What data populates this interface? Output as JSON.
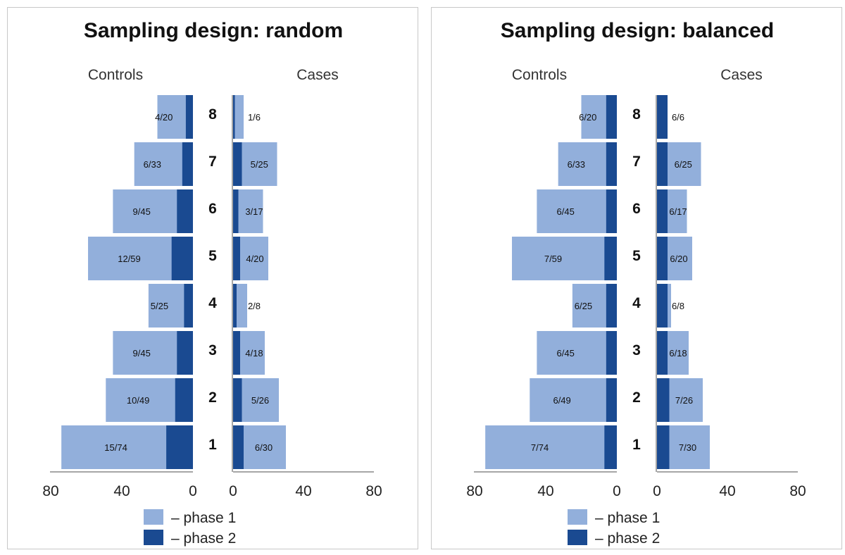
{
  "chart_data": [
    {
      "type": "bar",
      "title": "Sampling design: random",
      "left_label": "Controls",
      "right_label": "Cases",
      "strata": [
        "8",
        "7",
        "6",
        "5",
        "4",
        "3",
        "2",
        "1"
      ],
      "controls": {
        "phase1_totals": [
          20,
          33,
          45,
          59,
          25,
          45,
          49,
          74
        ],
        "phase2_values": [
          4,
          6,
          9,
          12,
          5,
          9,
          10,
          15
        ],
        "labels": [
          "4/20",
          "6/33",
          "9/45",
          "12/59",
          "5/25",
          "9/45",
          "10/49",
          "15/74"
        ]
      },
      "cases": {
        "phase1_totals": [
          6,
          25,
          17,
          20,
          8,
          18,
          26,
          30
        ],
        "phase2_values": [
          1,
          5,
          3,
          4,
          2,
          4,
          5,
          6
        ],
        "labels": [
          "1/6",
          "5/25",
          "3/17",
          "4/20",
          "2/8",
          "4/18",
          "5/26",
          "6/30"
        ]
      },
      "left_ticks": [
        "80",
        "40",
        "0"
      ],
      "right_ticks": [
        "0",
        "40",
        "80"
      ],
      "xlim": [
        0,
        80
      ]
    },
    {
      "type": "bar",
      "title": "Sampling design: balanced",
      "left_label": "Controls",
      "right_label": "Cases",
      "strata": [
        "8",
        "7",
        "6",
        "5",
        "4",
        "3",
        "2",
        "1"
      ],
      "controls": {
        "phase1_totals": [
          20,
          33,
          45,
          59,
          25,
          45,
          49,
          74
        ],
        "phase2_values": [
          6,
          6,
          6,
          7,
          6,
          6,
          6,
          7
        ],
        "labels": [
          "6/20",
          "6/33",
          "6/45",
          "7/59",
          "6/25",
          "6/45",
          "6/49",
          "7/74"
        ]
      },
      "cases": {
        "phase1_totals": [
          6,
          25,
          17,
          20,
          8,
          18,
          26,
          30
        ],
        "phase2_values": [
          6,
          6,
          6,
          6,
          6,
          6,
          7,
          7
        ],
        "labels": [
          "6/6",
          "6/25",
          "6/17",
          "6/20",
          "6/8",
          "6/18",
          "7/26",
          "7/30"
        ]
      },
      "left_ticks": [
        "80",
        "40",
        "0"
      ],
      "right_ticks": [
        "0",
        "40",
        "80"
      ],
      "xlim": [
        0,
        80
      ]
    }
  ],
  "legend": {
    "phase1": "– phase 1",
    "phase2": "– phase 2"
  },
  "colors": {
    "phase1": "#92afdb",
    "phase2": "#1a4a91",
    "axis": "#888888"
  }
}
